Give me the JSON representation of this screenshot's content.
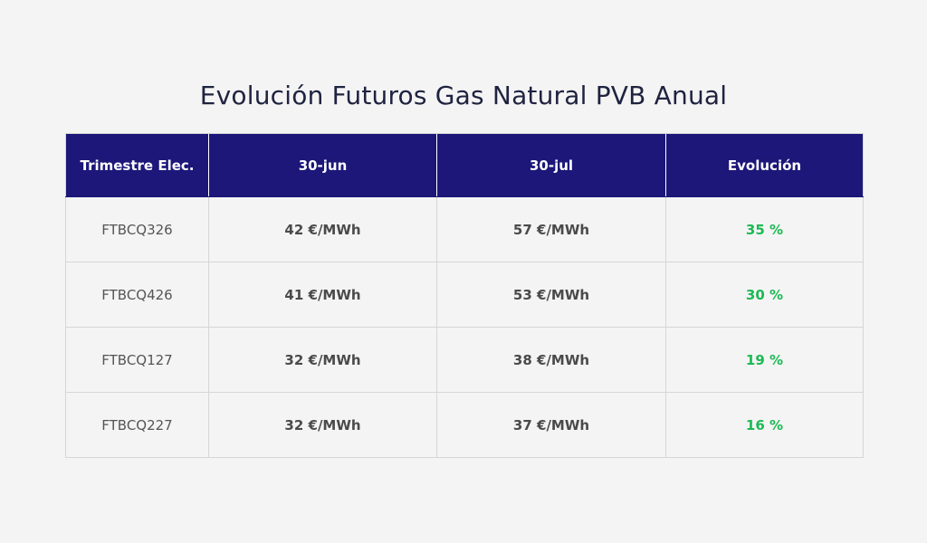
{
  "title": "Evolución Futuros Gas Natural PVB Anual",
  "colors": {
    "header_bg": "#1c1779",
    "positive": "#1db954"
  },
  "table": {
    "headers": [
      "Trimestre Elec.",
      "30-jun",
      "30-jul",
      "Evolución"
    ],
    "rows": [
      [
        "FTBCQ326",
        "42 €/MWh",
        "57 €/MWh",
        "35 %"
      ],
      [
        "FTBCQ426",
        "41 €/MWh",
        "53 €/MWh",
        "30 %"
      ],
      [
        "FTBCQ127",
        "32 €/MWh",
        "38 €/MWh",
        "19 %"
      ],
      [
        "FTBCQ227",
        "32 €/MWh",
        "37 €/MWh",
        "16 %"
      ]
    ]
  }
}
